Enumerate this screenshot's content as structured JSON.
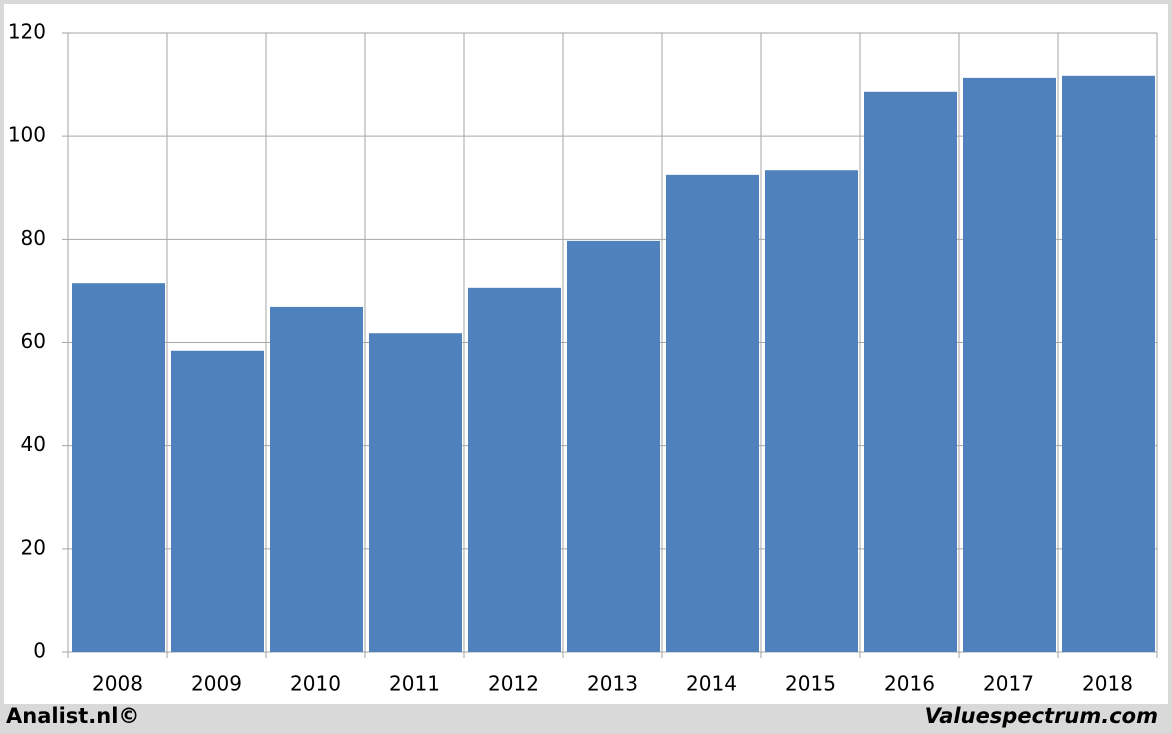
{
  "chart_data": {
    "type": "bar",
    "categories": [
      "2008",
      "2009",
      "2010",
      "2011",
      "2012",
      "2013",
      "2014",
      "2015",
      "2016",
      "2017",
      "2018"
    ],
    "values": [
      71.5,
      58.4,
      66.9,
      61.8,
      70.6,
      79.7,
      92.5,
      93.4,
      108.6,
      111.3,
      111.7
    ],
    "color": "#4f81bd",
    "ylim": [
      0,
      120
    ],
    "yticks": [
      0,
      20,
      40,
      60,
      80,
      100,
      120
    ],
    "grid": true
  },
  "footer": {
    "left": "Analist.nl©",
    "right": "Valuespectrum.com"
  }
}
